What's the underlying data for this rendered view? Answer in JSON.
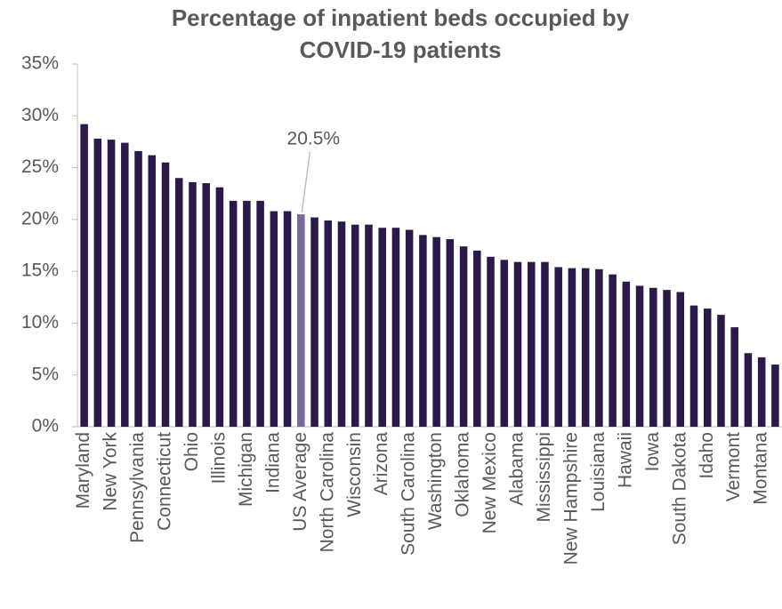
{
  "chart_data": {
    "type": "bar",
    "title": [
      "Percentage of inpatient beds occupied by",
      "COVID-19 patients"
    ],
    "categories": [
      "Maryland",
      null,
      "New York",
      null,
      "Pennsylvania",
      null,
      "Connecticut",
      null,
      "Ohio",
      null,
      "Illinois",
      null,
      "Michigan",
      null,
      "Indiana",
      null,
      "US Average",
      null,
      "North Carolina",
      null,
      "Wisconsin",
      null,
      "Arizona",
      null,
      "South Carolina",
      null,
      "Washington",
      null,
      "Oklahoma",
      null,
      "New Mexico",
      null,
      "Alabama",
      null,
      "Mississippi",
      null,
      "New Hampshire",
      null,
      "Louisiana",
      null,
      "Hawaii",
      null,
      "Iowa",
      null,
      "South Dakota",
      null,
      "Idaho",
      null,
      "Vermont",
      null,
      "Montana",
      null
    ],
    "values": [
      29.2,
      27.8,
      27.7,
      27.4,
      26.6,
      26.2,
      25.5,
      24.0,
      23.6,
      23.5,
      23.1,
      21.8,
      21.8,
      21.8,
      20.8,
      20.8,
      20.5,
      20.2,
      19.9,
      19.8,
      19.5,
      19.5,
      19.2,
      19.2,
      19.0,
      18.5,
      18.3,
      18.1,
      17.4,
      17.0,
      16.4,
      16.1,
      15.9,
      15.9,
      15.9,
      15.4,
      15.3,
      15.3,
      15.2,
      14.7,
      14.0,
      13.6,
      13.4,
      13.2,
      13.0,
      11.7,
      11.4,
      10.8,
      9.6,
      7.1,
      6.7,
      6.0
    ],
    "value_labels": [
      null,
      null,
      null,
      null,
      null,
      null,
      null,
      null,
      null,
      null,
      null,
      null,
      null,
      null,
      null,
      null,
      "20.5%",
      null,
      null,
      null,
      null,
      null,
      null,
      null,
      null,
      null,
      null,
      null,
      null,
      null,
      null,
      null,
      null,
      null,
      null,
      null,
      null,
      null,
      null,
      null,
      null,
      null,
      null,
      null,
      null,
      null,
      null,
      null,
      null,
      null,
      null,
      null
    ],
    "colors": [
      "#2b1a47",
      "#2b1a47",
      "#2b1a47",
      "#2b1a47",
      "#2b1a47",
      "#2b1a47",
      "#2b1a47",
      "#2b1a47",
      "#2b1a47",
      "#2b1a47",
      "#2b1a47",
      "#2b1a47",
      "#2b1a47",
      "#2b1a47",
      "#2b1a47",
      "#2b1a47",
      "#7a6896",
      "#2b1a47",
      "#2b1a47",
      "#2b1a47",
      "#2b1a47",
      "#2b1a47",
      "#2b1a47",
      "#2b1a47",
      "#2b1a47",
      "#2b1a47",
      "#2b1a47",
      "#2b1a47",
      "#2b1a47",
      "#2b1a47",
      "#2b1a47",
      "#2b1a47",
      "#2b1a47",
      "#2b1a47",
      "#2b1a47",
      "#2b1a47",
      "#2b1a47",
      "#2b1a47",
      "#2b1a47",
      "#2b1a47",
      "#2b1a47",
      "#2b1a47",
      "#2b1a47",
      "#2b1a47",
      "#2b1a47",
      "#2b1a47",
      "#2b1a47",
      "#2b1a47",
      "#2b1a47",
      "#2b1a47",
      "#2b1a47",
      "#2b1a47"
    ],
    "ylim": [
      0,
      35
    ],
    "yticks": [
      {
        "value": 0,
        "label": "0%"
      },
      {
        "value": 5,
        "label": "5%"
      },
      {
        "value": 10,
        "label": "10%"
      },
      {
        "value": 15,
        "label": "15%"
      },
      {
        "value": 20,
        "label": "20%"
      },
      {
        "value": 25,
        "label": "25%"
      },
      {
        "value": 30,
        "label": "30%"
      },
      {
        "value": 35,
        "label": "35%"
      }
    ],
    "grid": false
  }
}
